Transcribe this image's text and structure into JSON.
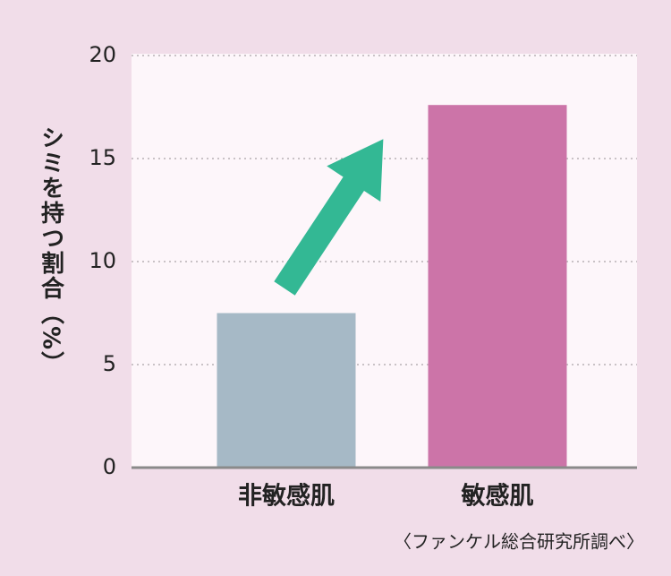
{
  "chart_data": {
    "type": "bar",
    "y_label": "シミを持つ割合（%）",
    "categories": [
      "非敏感肌",
      "敏感肌"
    ],
    "values": [
      7.5,
      17.6
    ],
    "colors": [
      "#a6b9c6",
      "#cc74a8"
    ],
    "ylim": [
      0,
      20
    ],
    "yticks": [
      0,
      5,
      10,
      15,
      20
    ],
    "grid": true,
    "source": "〈ファンケル総合研究所調べ〉"
  }
}
